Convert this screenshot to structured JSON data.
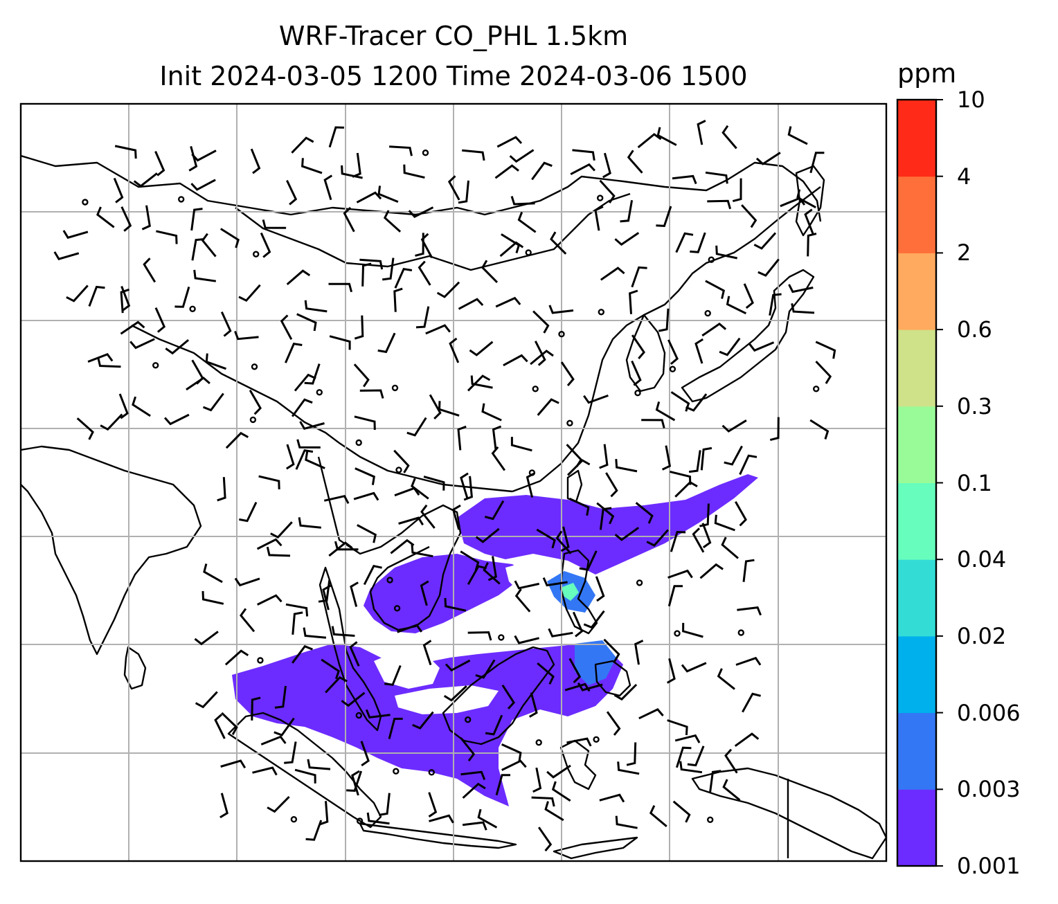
{
  "title_line1": "WRF-Tracer CO_PHL 1.5km",
  "title_line2": "Init 2024-03-05 1200 Time 2024-03-06 1500",
  "colorbar": {
    "unit": "ppm",
    "ticks": [
      "0.001",
      "0.003",
      "0.006",
      "0.02",
      "0.04",
      "0.1",
      "0.3",
      "0.6",
      "2",
      "4",
      "10"
    ],
    "colors": [
      "#6c2cff",
      "#3377f5",
      "#00b0ec",
      "#33ddd5",
      "#66fdbd",
      "#99fb98",
      "#cfe189",
      "#ffaa5e",
      "#ff6f3a",
      "#ff2a17"
    ]
  },
  "map": {
    "coastline_color": "#000000",
    "gridline_color": "#b0b0b0",
    "barb_color": "#000000",
    "region": "East and Southeast Asia"
  }
}
